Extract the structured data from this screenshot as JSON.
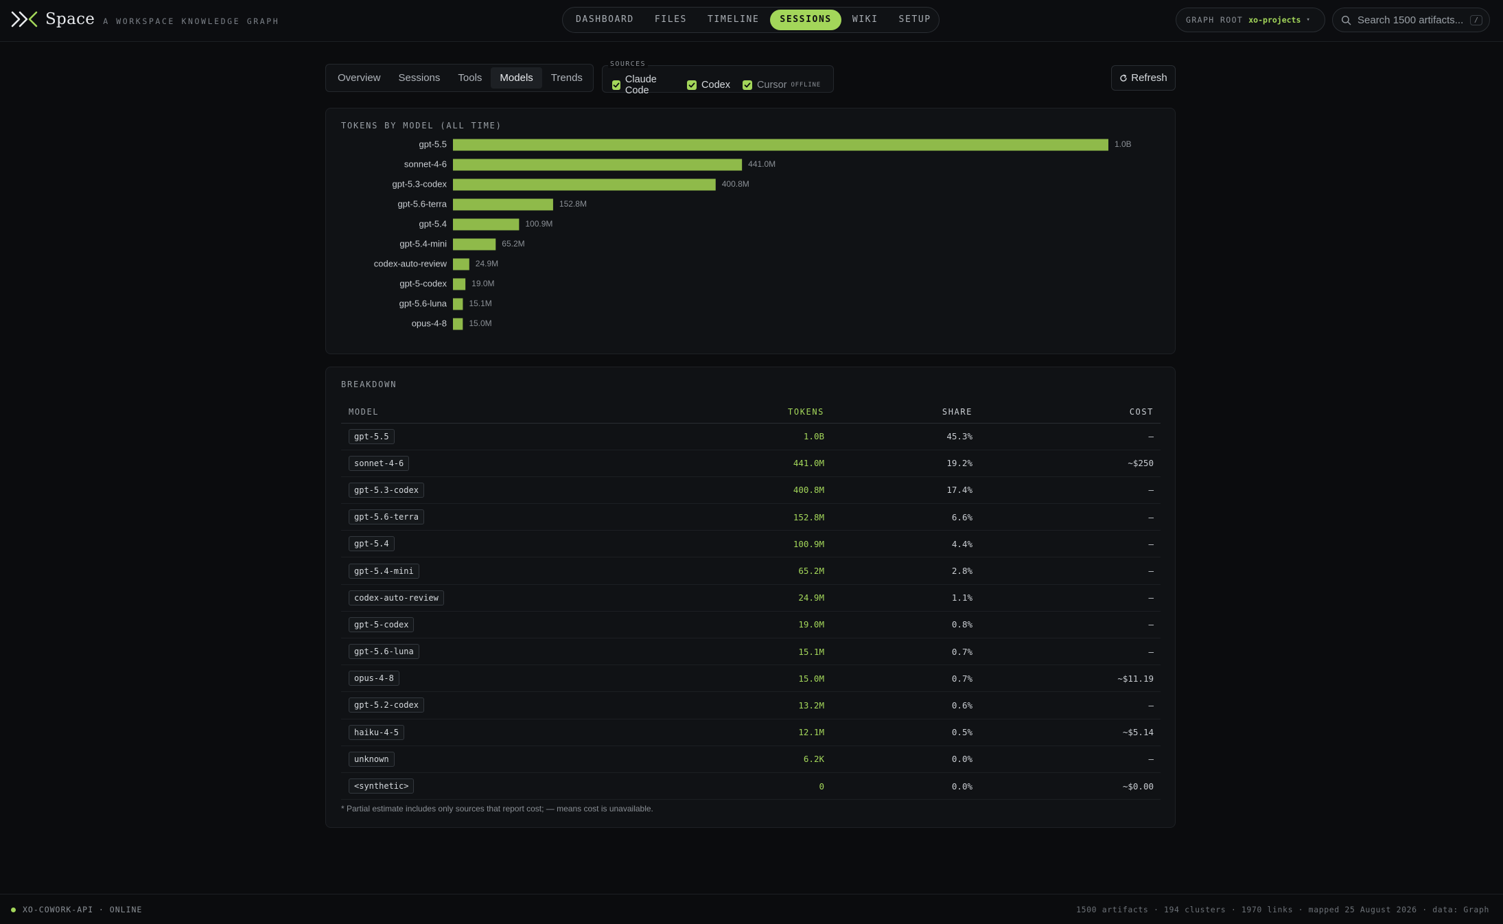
{
  "brand": {
    "name": "Space",
    "tagline": "A WORKSPACE KNOWLEDGE GRAPH",
    "logo_icon": "double-chevron-logo-icon"
  },
  "nav": [
    {
      "label": "DASHBOARD",
      "active": false
    },
    {
      "label": "FILES",
      "active": false
    },
    {
      "label": "TIMELINE",
      "active": false
    },
    {
      "label": "SESSIONS",
      "active": true
    },
    {
      "label": "WIKI",
      "active": false
    },
    {
      "label": "SETUP",
      "active": false
    }
  ],
  "graph_root": {
    "label": "GRAPH ROOT",
    "value": "xo-projects"
  },
  "search": {
    "placeholder": "Search 1500 artifacts...",
    "shortcut": "/"
  },
  "tabs": [
    {
      "label": "Overview",
      "active": false
    },
    {
      "label": "Sessions",
      "active": false
    },
    {
      "label": "Tools",
      "active": false
    },
    {
      "label": "Models",
      "active": true
    },
    {
      "label": "Trends",
      "active": false
    }
  ],
  "sources": {
    "legend": "SOURCES",
    "items": [
      {
        "label": "Claude Code",
        "checked": true,
        "badge": ""
      },
      {
        "label": "Codex",
        "checked": true,
        "badge": ""
      },
      {
        "label": "Cursor",
        "checked": true,
        "badge": "OFFLINE"
      }
    ]
  },
  "refresh_label": "Refresh",
  "colors": {
    "accent": "#a3d65a",
    "bar": "#8fba4a",
    "background": "#0b0c0e",
    "panel": "#101215"
  },
  "chart_data": {
    "type": "bar",
    "orientation": "horizontal",
    "title": "TOKENS BY MODEL (ALL TIME)",
    "categories": [
      "gpt-5.5",
      "sonnet-4-6",
      "gpt-5.3-codex",
      "gpt-5.6-terra",
      "gpt-5.4",
      "gpt-5.4-mini",
      "codex-auto-review",
      "gpt-5-codex",
      "gpt-5.6-luna",
      "opus-4-8"
    ],
    "values": [
      1000000000,
      441000000,
      400800000,
      152800000,
      100900000,
      65200000,
      24900000,
      19000000,
      15100000,
      15000000
    ],
    "data_labels": [
      "1.0B",
      "441.0M",
      "400.8M",
      "152.8M",
      "100.9M",
      "65.2M",
      "24.9M",
      "19.0M",
      "15.1M",
      "15.0M"
    ],
    "xlim": [
      0,
      1000000000
    ],
    "grid": false,
    "legend": "none"
  },
  "breakdown": {
    "title": "BREAKDOWN",
    "headers": {
      "model": "MODEL",
      "tokens": "TOKENS",
      "share": "SHARE",
      "cost": "COST"
    },
    "rows": [
      {
        "model": "gpt-5.5",
        "tokens": "1.0B",
        "share": "45.3%",
        "cost": "—"
      },
      {
        "model": "sonnet-4-6",
        "tokens": "441.0M",
        "share": "19.2%",
        "cost": "~$250"
      },
      {
        "model": "gpt-5.3-codex",
        "tokens": "400.8M",
        "share": "17.4%",
        "cost": "—"
      },
      {
        "model": "gpt-5.6-terra",
        "tokens": "152.8M",
        "share": "6.6%",
        "cost": "—"
      },
      {
        "model": "gpt-5.4",
        "tokens": "100.9M",
        "share": "4.4%",
        "cost": "—"
      },
      {
        "model": "gpt-5.4-mini",
        "tokens": "65.2M",
        "share": "2.8%",
        "cost": "—"
      },
      {
        "model": "codex-auto-review",
        "tokens": "24.9M",
        "share": "1.1%",
        "cost": "—"
      },
      {
        "model": "gpt-5-codex",
        "tokens": "19.0M",
        "share": "0.8%",
        "cost": "—"
      },
      {
        "model": "gpt-5.6-luna",
        "tokens": "15.1M",
        "share": "0.7%",
        "cost": "—"
      },
      {
        "model": "opus-4-8",
        "tokens": "15.0M",
        "share": "0.7%",
        "cost": "~$11.19"
      },
      {
        "model": "gpt-5.2-codex",
        "tokens": "13.2M",
        "share": "0.6%",
        "cost": "—"
      },
      {
        "model": "haiku-4-5",
        "tokens": "12.1M",
        "share": "0.5%",
        "cost": "~$5.14"
      },
      {
        "model": "unknown",
        "tokens": "6.2K",
        "share": "0.0%",
        "cost": "—"
      },
      {
        "model": "<synthetic>",
        "tokens": "0",
        "share": "0.0%",
        "cost": "~$0.00"
      }
    ],
    "footnote": "* Partial estimate includes only sources that report cost; — means cost is unavailable."
  },
  "status": {
    "api": "XO-COWORK-API · ONLINE",
    "summary": "1500 artifacts · 194 clusters · 1970 links · mapped 25 August 2026 · data: Graph"
  }
}
